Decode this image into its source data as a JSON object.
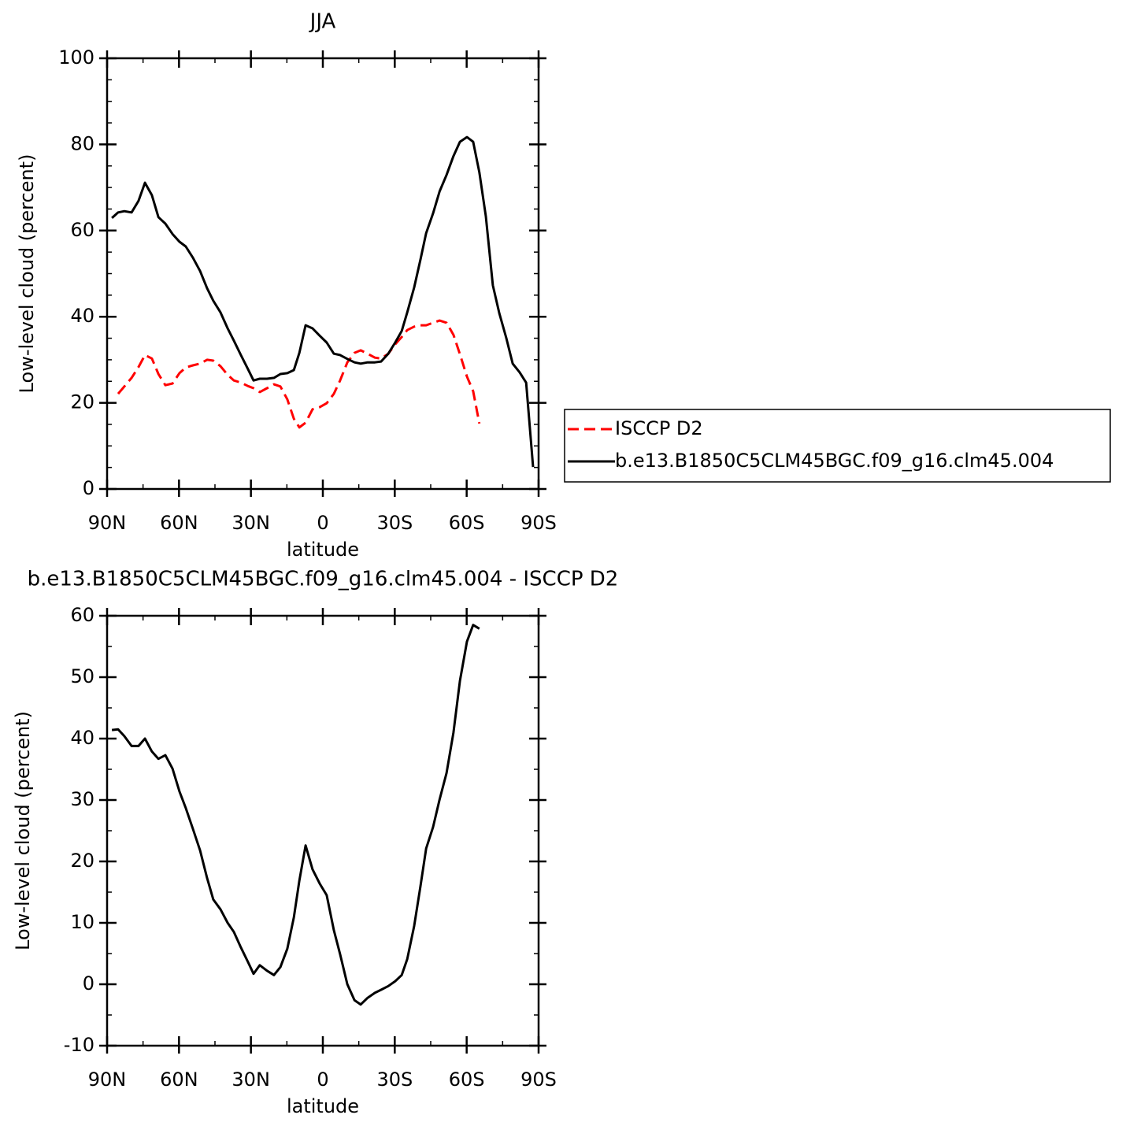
{
  "chart_data": [
    {
      "type": "line",
      "title": "JJA",
      "xlabel": "latitude",
      "ylabel": "Low-level cloud (percent)",
      "xlim": [
        90,
        -90
      ],
      "ylim": [
        0,
        100
      ],
      "xticks": [
        {
          "value": 90,
          "label": "90N"
        },
        {
          "value": 60,
          "label": "60N"
        },
        {
          "value": 30,
          "label": "30N"
        },
        0,
        {
          "value": -30,
          "label": "30S"
        },
        {
          "value": -60,
          "label": "60S"
        },
        {
          "value": -90,
          "label": "90S"
        }
      ],
      "yticks": [
        0,
        20,
        40,
        60,
        80,
        100
      ],
      "legend": "right",
      "x": [
        88,
        85.4,
        82.8,
        79.8,
        76.9,
        74.2,
        71.3,
        68.6,
        65.7,
        62.7,
        59.8,
        57.2,
        54.2,
        51.2,
        48.3,
        45.7,
        42.7,
        39.7,
        37.1,
        34.2,
        31.2,
        28.9,
        26.3,
        23.3,
        20.4,
        17.7,
        14.8,
        12.1,
        9.8,
        7.2,
        4.3,
        1.3,
        -1.6,
        -4.6,
        -7.2,
        -10.2,
        -13.2,
        -15.8,
        -18.7,
        -21.7,
        -24.3,
        -27.3,
        -30.2,
        -32.9,
        -35.2,
        -38.1,
        -40.7,
        -43.1,
        -46.0,
        -48.7,
        -51.6,
        -54.5,
        -57.2,
        -60.1,
        -62.7,
        -65.3,
        -68.0,
        -70.9,
        -73.6,
        -76.5,
        -79.2,
        -82.1,
        -84.8,
        -87.7
      ],
      "series": [
        {
          "name": "ISCCP D2",
          "color": "#ff0000",
          "dashed": true,
          "values": [
            null,
            22.1,
            23.8,
            25.8,
            28.3,
            31.1,
            30.3,
            26.7,
            24.1,
            24.5,
            26.9,
            28.2,
            28.7,
            29.1,
            30.0,
            29.8,
            28.5,
            26.5,
            25.2,
            24.7,
            23.9,
            23.4,
            22.5,
            23.4,
            24.3,
            23.8,
            20.8,
            16.3,
            14.3,
            15.4,
            18.5,
            19.0,
            19.9,
            22.1,
            25.2,
            29.4,
            31.6,
            32.2,
            31.4,
            30.5,
            30.3,
            31.4,
            33.6,
            35.3,
            36.9,
            37.7,
            38.0,
            38.0,
            38.6,
            39.1,
            38.6,
            35.8,
            31.3,
            26.1,
            22.7,
            15.2,
            null,
            null,
            null,
            null,
            null,
            null,
            null,
            null
          ]
        },
        {
          "name": "b.e13.B1850C5CLM45BGC.f09_g16.clm45.004",
          "color": "#000000",
          "dashed": false,
          "values": [
            62.9,
            64.2,
            64.5,
            64.2,
            66.9,
            71.1,
            68.2,
            63.1,
            61.6,
            59.2,
            57.4,
            56.3,
            53.7,
            50.6,
            46.6,
            43.7,
            41.0,
            37.3,
            34.4,
            31.1,
            27.8,
            25.2,
            25.6,
            25.6,
            25.8,
            26.7,
            26.9,
            27.6,
            31.6,
            38.0,
            37.3,
            35.6,
            34.0,
            31.4,
            31.1,
            30.2,
            29.4,
            29.1,
            29.4,
            29.4,
            29.6,
            31.4,
            34.0,
            36.7,
            41.0,
            46.8,
            53.2,
            59.4,
            64.0,
            69.1,
            72.9,
            77.3,
            80.6,
            81.7,
            80.6,
            73.5,
            63.3,
            47.3,
            40.8,
            35.1,
            29.1,
            27.1,
            24.7,
            5.1
          ]
        }
      ]
    },
    {
      "type": "line",
      "title": "b.e13.B1850C5CLM45BGC.f09_g16.clm45.004 - ISCCP D2",
      "xlabel": "latitude",
      "ylabel": "Low-level cloud (percent)",
      "xlim": [
        90,
        -90
      ],
      "ylim": [
        -10,
        60
      ],
      "xticks": [
        {
          "value": 90,
          "label": "90N"
        },
        {
          "value": 60,
          "label": "60N"
        },
        {
          "value": 30,
          "label": "30N"
        },
        0,
        {
          "value": -30,
          "label": "30S"
        },
        {
          "value": -60,
          "label": "60S"
        },
        {
          "value": -90,
          "label": "90S"
        }
      ],
      "yticks": [
        -10,
        0,
        10,
        20,
        30,
        40,
        50,
        60
      ],
      "x": [
        88,
        85.4,
        82.8,
        79.8,
        76.9,
        74.2,
        71.3,
        68.6,
        65.7,
        62.7,
        59.8,
        57.2,
        54.2,
        51.2,
        48.3,
        45.7,
        42.7,
        39.7,
        37.1,
        34.2,
        31.2,
        28.9,
        26.3,
        23.3,
        20.4,
        17.7,
        14.8,
        12.1,
        9.8,
        7.2,
        4.3,
        1.3,
        -1.6,
        -4.6,
        -7.2,
        -10.2,
        -13.2,
        -15.8,
        -18.7,
        -21.7,
        -24.3,
        -27.3,
        -30.2,
        -32.9,
        -35.2,
        -38.1,
        -40.7,
        -43.1,
        -46.0,
        -48.7,
        -51.6,
        -54.5,
        -57.2,
        -60.1,
        -62.7,
        -65.3
      ],
      "series": [
        {
          "color": "#000000",
          "dashed": false,
          "values": [
            41.4,
            41.5,
            40.4,
            38.8,
            38.8,
            40.0,
            37.9,
            36.7,
            37.3,
            35.1,
            31.4,
            28.7,
            25.3,
            21.8,
            17.3,
            13.8,
            12.2,
            10.0,
            8.5,
            6.0,
            3.6,
            1.7,
            3.1,
            2.2,
            1.5,
            2.8,
            5.8,
            10.9,
            16.9,
            22.6,
            18.7,
            16.4,
            14.5,
            8.8,
            4.9,
            0,
            -2.6,
            -3.3,
            -2.2,
            -1.4,
            -0.9,
            -0.3,
            0.5,
            1.5,
            4.1,
            9.5,
            15.9,
            22.1,
            25.6,
            30.1,
            34.4,
            41.0,
            49.4,
            55.8,
            58.5,
            57.9
          ]
        }
      ]
    }
  ]
}
